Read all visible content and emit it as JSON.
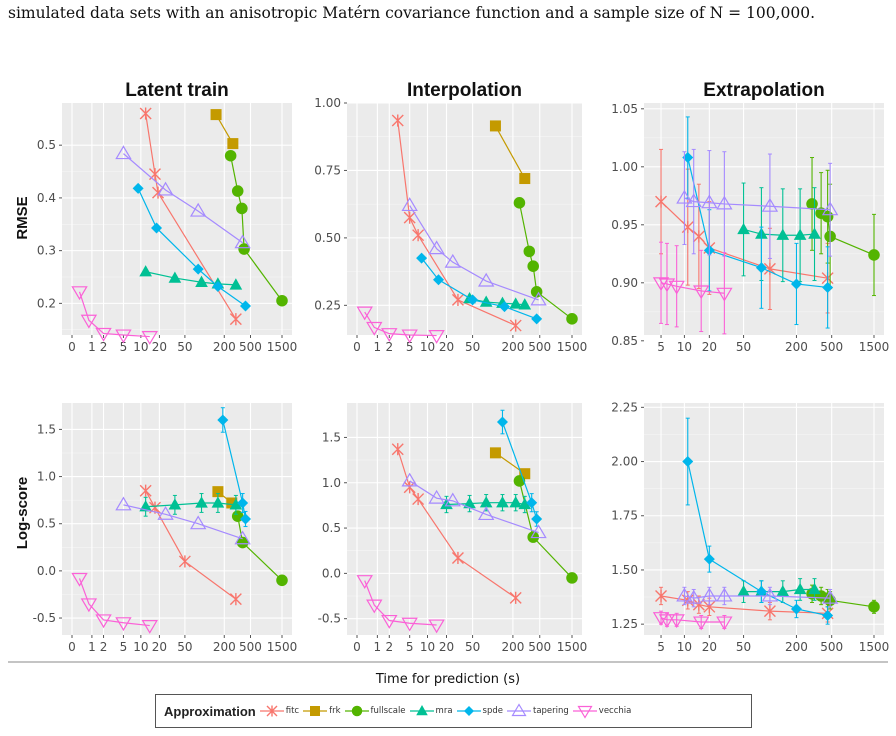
{
  "caption": "simulated data sets with an anisotropic Matérn covariance function and a sample size of N = 100,000.",
  "figure": {
    "xlabel": "Time for prediction (s)",
    "ylabels": {
      "rmse": "RMSE",
      "logscore": "Log-score"
    },
    "colors": {
      "fitc": "#F8766D",
      "frk": "#C49A00",
      "fullscale": "#53B400",
      "mra": "#00C094",
      "spde": "#00B6EB",
      "tapering": "#A58AFF",
      "vecchia": "#FB61D7"
    },
    "marker_shapes": {
      "fitc": "asterisk-x",
      "frk": "square",
      "fullscale": "circle",
      "mra": "triangle-up",
      "spde": "diamond",
      "tapering": "triangle-up-open",
      "vecchia": "triangle-down-open"
    }
  },
  "legend": {
    "title": "Approximation",
    "items": [
      "fitc",
      "frk",
      "fullscale",
      "mra",
      "spde",
      "tapering",
      "vecchia"
    ]
  },
  "chart_data": [
    {
      "type": "line",
      "panel": "rmse-latent",
      "title": "Latent train",
      "xlabel": "",
      "ylabel": "RMSE",
      "xscale": "log1p",
      "xlim": [
        0,
        1500
      ],
      "ylim": [
        0.14,
        0.58
      ],
      "x_ticks": [
        0,
        1,
        2,
        5,
        10,
        20,
        50,
        200,
        500,
        1500
      ],
      "x_tick_labels": [
        "0",
        "1",
        "2",
        "5",
        "10",
        "20",
        "50",
        "200",
        "500",
        "1500"
      ],
      "y_ticks": [
        0.2,
        0.3,
        0.4,
        0.5
      ],
      "y_tick_labels": [
        "0.2",
        "0.3",
        "0.4",
        "0.5"
      ],
      "series": [
        {
          "name": "fitc",
          "x": [
            12,
            17,
            19,
            300
          ],
          "y": [
            0.56,
            0.445,
            0.41,
            0.17
          ]
        },
        {
          "name": "frk",
          "x": [
            150,
            270
          ],
          "y": [
            0.558,
            0.503
          ]
        },
        {
          "name": "fullscale",
          "x": [
            250,
            320,
            370,
            400,
            1500
          ],
          "y": [
            0.48,
            0.413,
            0.38,
            0.303,
            0.205
          ]
        },
        {
          "name": "mra",
          "x": [
            12,
            35,
            90,
            160,
            300
          ],
          "y": [
            0.26,
            0.248,
            0.24,
            0.237,
            0.235
          ]
        },
        {
          "name": "spde",
          "x": [
            9,
            18,
            80,
            160,
            420
          ],
          "y": [
            0.418,
            0.343,
            0.265,
            0.232,
            0.195
          ]
        },
        {
          "name": "tapering",
          "x": [
            5,
            25,
            80,
            380
          ],
          "y": [
            0.484,
            0.415,
            0.375,
            0.315
          ]
        },
        {
          "name": "vecchia",
          "x": [
            0.3,
            0.8,
            2,
            5,
            14
          ],
          "y": [
            0.222,
            0.168,
            0.143,
            0.14,
            0.137
          ]
        }
      ]
    },
    {
      "type": "line",
      "panel": "rmse-interp",
      "title": "Interpolation",
      "xlabel": "",
      "ylabel": "",
      "xscale": "log1p",
      "xlim": [
        0,
        1500
      ],
      "ylim": [
        0.14,
        1.0
      ],
      "x_ticks": [
        0,
        1,
        2,
        5,
        10,
        20,
        50,
        200,
        500,
        1500
      ],
      "x_tick_labels": [
        "0",
        "1",
        "2",
        "5",
        "10",
        "20",
        "50",
        "200",
        "500",
        "1500"
      ],
      "y_ticks": [
        0.25,
        0.5,
        0.75,
        1.0
      ],
      "y_tick_labels": [
        "0.25",
        "0.50",
        "0.75",
        "1.00"
      ],
      "series": [
        {
          "name": "fitc",
          "x": [
            3,
            5,
            7,
            30,
            220
          ],
          "y": [
            0.935,
            0.575,
            0.51,
            0.27,
            0.175
          ]
        },
        {
          "name": "frk",
          "x": [
            110,
            300
          ],
          "y": [
            0.915,
            0.72
          ]
        },
        {
          "name": "fullscale",
          "x": [
            250,
            350,
            400,
            450,
            1500
          ],
          "y": [
            0.63,
            0.45,
            0.395,
            0.3,
            0.2
          ]
        },
        {
          "name": "mra",
          "x": [
            45,
            80,
            140,
            220,
            300
          ],
          "y": [
            0.275,
            0.262,
            0.258,
            0.255,
            0.252
          ]
        },
        {
          "name": "spde",
          "x": [
            8,
            15,
            50,
            150,
            450
          ],
          "y": [
            0.425,
            0.345,
            0.27,
            0.245,
            0.2
          ]
        },
        {
          "name": "tapering",
          "x": [
            5,
            14,
            25,
            80,
            480
          ],
          "y": [
            0.62,
            0.46,
            0.41,
            0.34,
            0.27
          ]
        },
        {
          "name": "vecchia",
          "x": [
            0.3,
            0.8,
            2,
            5,
            14
          ],
          "y": [
            0.225,
            0.168,
            0.145,
            0.14,
            0.138
          ]
        }
      ]
    },
    {
      "type": "line",
      "panel": "rmse-extrap",
      "title": "Extrapolation",
      "xlabel": "",
      "ylabel": "",
      "xscale": "log1p",
      "xlim": [
        4,
        1500
      ],
      "ylim": [
        0.855,
        1.055
      ],
      "x_ticks": [
        5,
        10,
        20,
        50,
        200,
        500,
        1500
      ],
      "x_tick_labels": [
        "5",
        "10",
        "20",
        "50",
        "200",
        "500",
        "1500"
      ],
      "y_ticks": [
        0.85,
        0.9,
        0.95,
        1.0,
        1.05
      ],
      "y_tick_labels": [
        "0.85",
        "0.90",
        "0.95",
        "1.00",
        "1.05"
      ],
      "error_bars": "present",
      "series": [
        {
          "name": "fitc",
          "x": [
            5,
            11,
            15,
            20,
            100,
            450
          ],
          "y": [
            0.97,
            0.948,
            0.94,
            0.93,
            0.912,
            0.904
          ],
          "err": [
            0.045,
            0.05,
            0.045,
            0.04,
            0.035,
            0.03
          ]
        },
        {
          "name": "fullscale",
          "x": [
            300,
            380,
            450,
            480,
            1500
          ],
          "y": [
            0.968,
            0.96,
            0.957,
            0.94,
            0.924
          ],
          "err": [
            0.04,
            0.035,
            0.04,
            0.045,
            0.035
          ]
        },
        {
          "name": "mra",
          "x": [
            50,
            80,
            140,
            220,
            320
          ],
          "y": [
            0.946,
            0.942,
            0.941,
            0.941,
            0.942
          ],
          "err": [
            0.04,
            0.04,
            0.04,
            0.04,
            0.04
          ]
        },
        {
          "name": "spde",
          "x": [
            11,
            20,
            80,
            200,
            450
          ],
          "y": [
            1.008,
            0.928,
            0.913,
            0.899,
            0.896
          ],
          "err": [
            0.035,
            0.035,
            0.035,
            0.035,
            0.035
          ]
        },
        {
          "name": "tapering",
          "x": [
            10,
            13,
            20,
            30,
            100,
            480
          ],
          "y": [
            0.973,
            0.97,
            0.969,
            0.968,
            0.966,
            0.963
          ],
          "err": [
            0.04,
            0.045,
            0.045,
            0.045,
            0.045,
            0.04
          ]
        },
        {
          "name": "vecchia",
          "x": [
            5,
            6,
            8,
            16,
            30
          ],
          "y": [
            0.9,
            0.899,
            0.897,
            0.893,
            0.891
          ],
          "err": [
            0.035,
            0.035,
            0.035,
            0.035,
            0.035
          ]
        }
      ]
    },
    {
      "type": "line",
      "panel": "logscore-latent",
      "title": "",
      "xlabel": "",
      "ylabel": "Log-score",
      "xscale": "log1p",
      "xlim": [
        0,
        1500
      ],
      "ylim": [
        -0.68,
        1.78
      ],
      "x_ticks": [
        0,
        1,
        2,
        5,
        10,
        20,
        50,
        200,
        500,
        1500
      ],
      "x_tick_labels": [
        "0",
        "1",
        "2",
        "5",
        "10",
        "20",
        "50",
        "200",
        "500",
        "1500"
      ],
      "y_ticks": [
        -0.5,
        0.0,
        0.5,
        1.0,
        1.5
      ],
      "y_tick_labels": [
        "-0.5",
        "0.0",
        "0.5",
        "1.0",
        "1.5"
      ],
      "error_bars": "present",
      "series": [
        {
          "name": "fitc",
          "x": [
            12,
            17,
            50,
            300
          ],
          "y": [
            0.85,
            0.67,
            0.1,
            -0.3
          ]
        },
        {
          "name": "frk",
          "x": [
            160,
            260
          ],
          "y": [
            0.84,
            0.72
          ]
        },
        {
          "name": "fullscale",
          "x": [
            320,
            380,
            1500
          ],
          "y": [
            0.58,
            0.3,
            -0.1
          ]
        },
        {
          "name": "mra",
          "x": [
            12,
            35,
            90,
            160,
            300
          ],
          "y": [
            0.68,
            0.7,
            0.72,
            0.72,
            0.7
          ],
          "err": [
            0.1,
            0.1,
            0.1,
            0.1,
            0.1
          ]
        },
        {
          "name": "spde",
          "x": [
            190,
            380,
            420
          ],
          "y": [
            1.6,
            0.72,
            0.55
          ],
          "err": [
            0.13,
            0.1,
            0.08
          ]
        },
        {
          "name": "tapering",
          "x": [
            5,
            25,
            80,
            380
          ],
          "y": [
            0.7,
            0.6,
            0.5,
            0.34
          ]
        },
        {
          "name": "vecchia",
          "x": [
            0.3,
            0.8,
            2,
            5,
            14
          ],
          "y": [
            -0.08,
            -0.35,
            -0.52,
            -0.55,
            -0.58
          ]
        }
      ]
    },
    {
      "type": "line",
      "panel": "logscore-interp",
      "title": "",
      "xlabel": "",
      "ylabel": "",
      "xscale": "log1p",
      "xlim": [
        0,
        1500
      ],
      "ylim": [
        -0.68,
        1.88
      ],
      "x_ticks": [
        0,
        1,
        2,
        5,
        10,
        20,
        50,
        200,
        500,
        1500
      ],
      "x_tick_labels": [
        "0",
        "1",
        "2",
        "5",
        "10",
        "20",
        "50",
        "200",
        "500",
        "1500"
      ],
      "y_ticks": [
        -0.5,
        0.0,
        0.5,
        1.0,
        1.5
      ],
      "y_tick_labels": [
        "-0.5",
        "0.0",
        "0.5",
        "1.0",
        "1.5"
      ],
      "error_bars": "present",
      "series": [
        {
          "name": "fitc",
          "x": [
            3,
            5,
            7,
            30,
            220
          ],
          "y": [
            1.37,
            0.95,
            0.82,
            0.17,
            -0.27
          ]
        },
        {
          "name": "frk",
          "x": [
            110,
            300
          ],
          "y": [
            1.33,
            1.1
          ]
        },
        {
          "name": "fullscale",
          "x": [
            250,
            400,
            1500
          ],
          "y": [
            1.02,
            0.4,
            -0.05
          ]
        },
        {
          "name": "mra",
          "x": [
            20,
            45,
            80,
            140,
            220,
            300
          ],
          "y": [
            0.76,
            0.77,
            0.78,
            0.78,
            0.78,
            0.76
          ],
          "err": [
            0.09,
            0.09,
            0.09,
            0.09,
            0.09,
            0.09
          ]
        },
        {
          "name": "spde",
          "x": [
            140,
            380,
            450
          ],
          "y": [
            1.67,
            0.78,
            0.6
          ],
          "err": [
            0.13,
            0.1,
            0.08
          ]
        },
        {
          "name": "tapering",
          "x": [
            5,
            14,
            25,
            80,
            480
          ],
          "y": [
            1.02,
            0.83,
            0.8,
            0.65,
            0.45
          ]
        },
        {
          "name": "vecchia",
          "x": [
            0.3,
            0.8,
            2,
            5,
            14
          ],
          "y": [
            -0.08,
            -0.35,
            -0.52,
            -0.55,
            -0.57
          ]
        }
      ]
    },
    {
      "type": "line",
      "panel": "logscore-extrap",
      "title": "",
      "xlabel": "",
      "ylabel": "",
      "xscale": "log1p",
      "xlim": [
        4,
        1500
      ],
      "ylim": [
        1.2,
        2.27
      ],
      "x_ticks": [
        5,
        10,
        20,
        50,
        200,
        500,
        1500
      ],
      "x_tick_labels": [
        "5",
        "10",
        "20",
        "50",
        "200",
        "500",
        "1500"
      ],
      "y_ticks": [
        1.25,
        1.5,
        1.75,
        2.0,
        2.25
      ],
      "y_tick_labels": [
        "1.25",
        "1.50",
        "1.75",
        "2.00",
        "2.25"
      ],
      "error_bars": "present",
      "series": [
        {
          "name": "fitc",
          "x": [
            5,
            11,
            15,
            20,
            100,
            450
          ],
          "y": [
            1.38,
            1.36,
            1.34,
            1.33,
            1.31,
            1.3
          ],
          "err": [
            0.04,
            0.04,
            0.04,
            0.04,
            0.04,
            0.04
          ]
        },
        {
          "name": "fullscale",
          "x": [
            300,
            380,
            450,
            480,
            1500
          ],
          "y": [
            1.39,
            1.38,
            1.37,
            1.36,
            1.33
          ],
          "err": [
            0.04,
            0.04,
            0.04,
            0.04,
            0.03
          ]
        },
        {
          "name": "mra",
          "x": [
            50,
            80,
            140,
            220,
            320
          ],
          "y": [
            1.4,
            1.4,
            1.4,
            1.41,
            1.41
          ],
          "err": [
            0.05,
            0.05,
            0.05,
            0.05,
            0.05
          ]
        },
        {
          "name": "spde",
          "x": [
            11,
            20,
            80,
            200,
            450
          ],
          "y": [
            2.0,
            1.55,
            1.4,
            1.32,
            1.29
          ],
          "err": [
            0.2,
            0.06,
            0.05,
            0.04,
            0.04
          ]
        },
        {
          "name": "tapering",
          "x": [
            10,
            13,
            20,
            30,
            100,
            480
          ],
          "y": [
            1.38,
            1.37,
            1.38,
            1.38,
            1.38,
            1.37
          ],
          "err": [
            0.04,
            0.04,
            0.04,
            0.04,
            0.04,
            0.04
          ]
        },
        {
          "name": "vecchia",
          "x": [
            5,
            6,
            8,
            16,
            30
          ],
          "y": [
            1.28,
            1.27,
            1.27,
            1.26,
            1.26
          ],
          "err": [
            0.03,
            0.03,
            0.03,
            0.03,
            0.03
          ]
        }
      ]
    }
  ]
}
